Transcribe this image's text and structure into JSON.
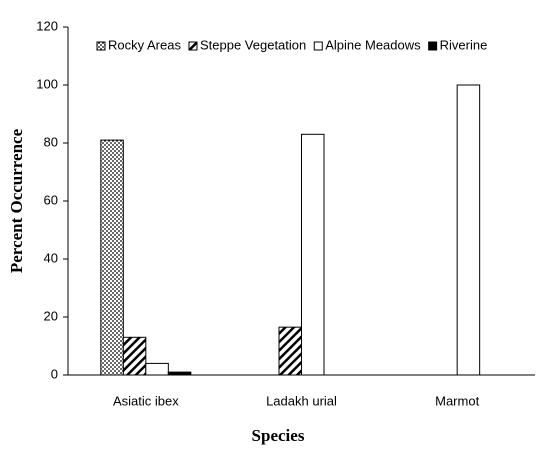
{
  "chart_data": {
    "type": "bar",
    "x_label": "Species",
    "y_label": "Percent Occurrence",
    "categories": [
      "Asiatic ibex",
      "Ladakh urial",
      "Marmot"
    ],
    "series": [
      {
        "name": "Rocky Areas",
        "color": "#000000",
        "pattern": "dots",
        "values": [
          81,
          0,
          0
        ]
      },
      {
        "name": "Steppe Vegetation",
        "color": "#000000",
        "pattern": "hatch",
        "values": [
          13,
          16.5,
          0
        ]
      },
      {
        "name": "Alpine Meadows",
        "color": "#ffffff",
        "pattern": "solid",
        "values": [
          4,
          83,
          100
        ]
      },
      {
        "name": "Riverine",
        "color": "#000000",
        "pattern": "solid",
        "values": [
          1,
          0,
          0
        ]
      }
    ],
    "ylim": [
      0,
      120
    ],
    "yticks": [
      0,
      20,
      40,
      60,
      80,
      100,
      120
    ],
    "grid": false,
    "legend": "top"
  }
}
